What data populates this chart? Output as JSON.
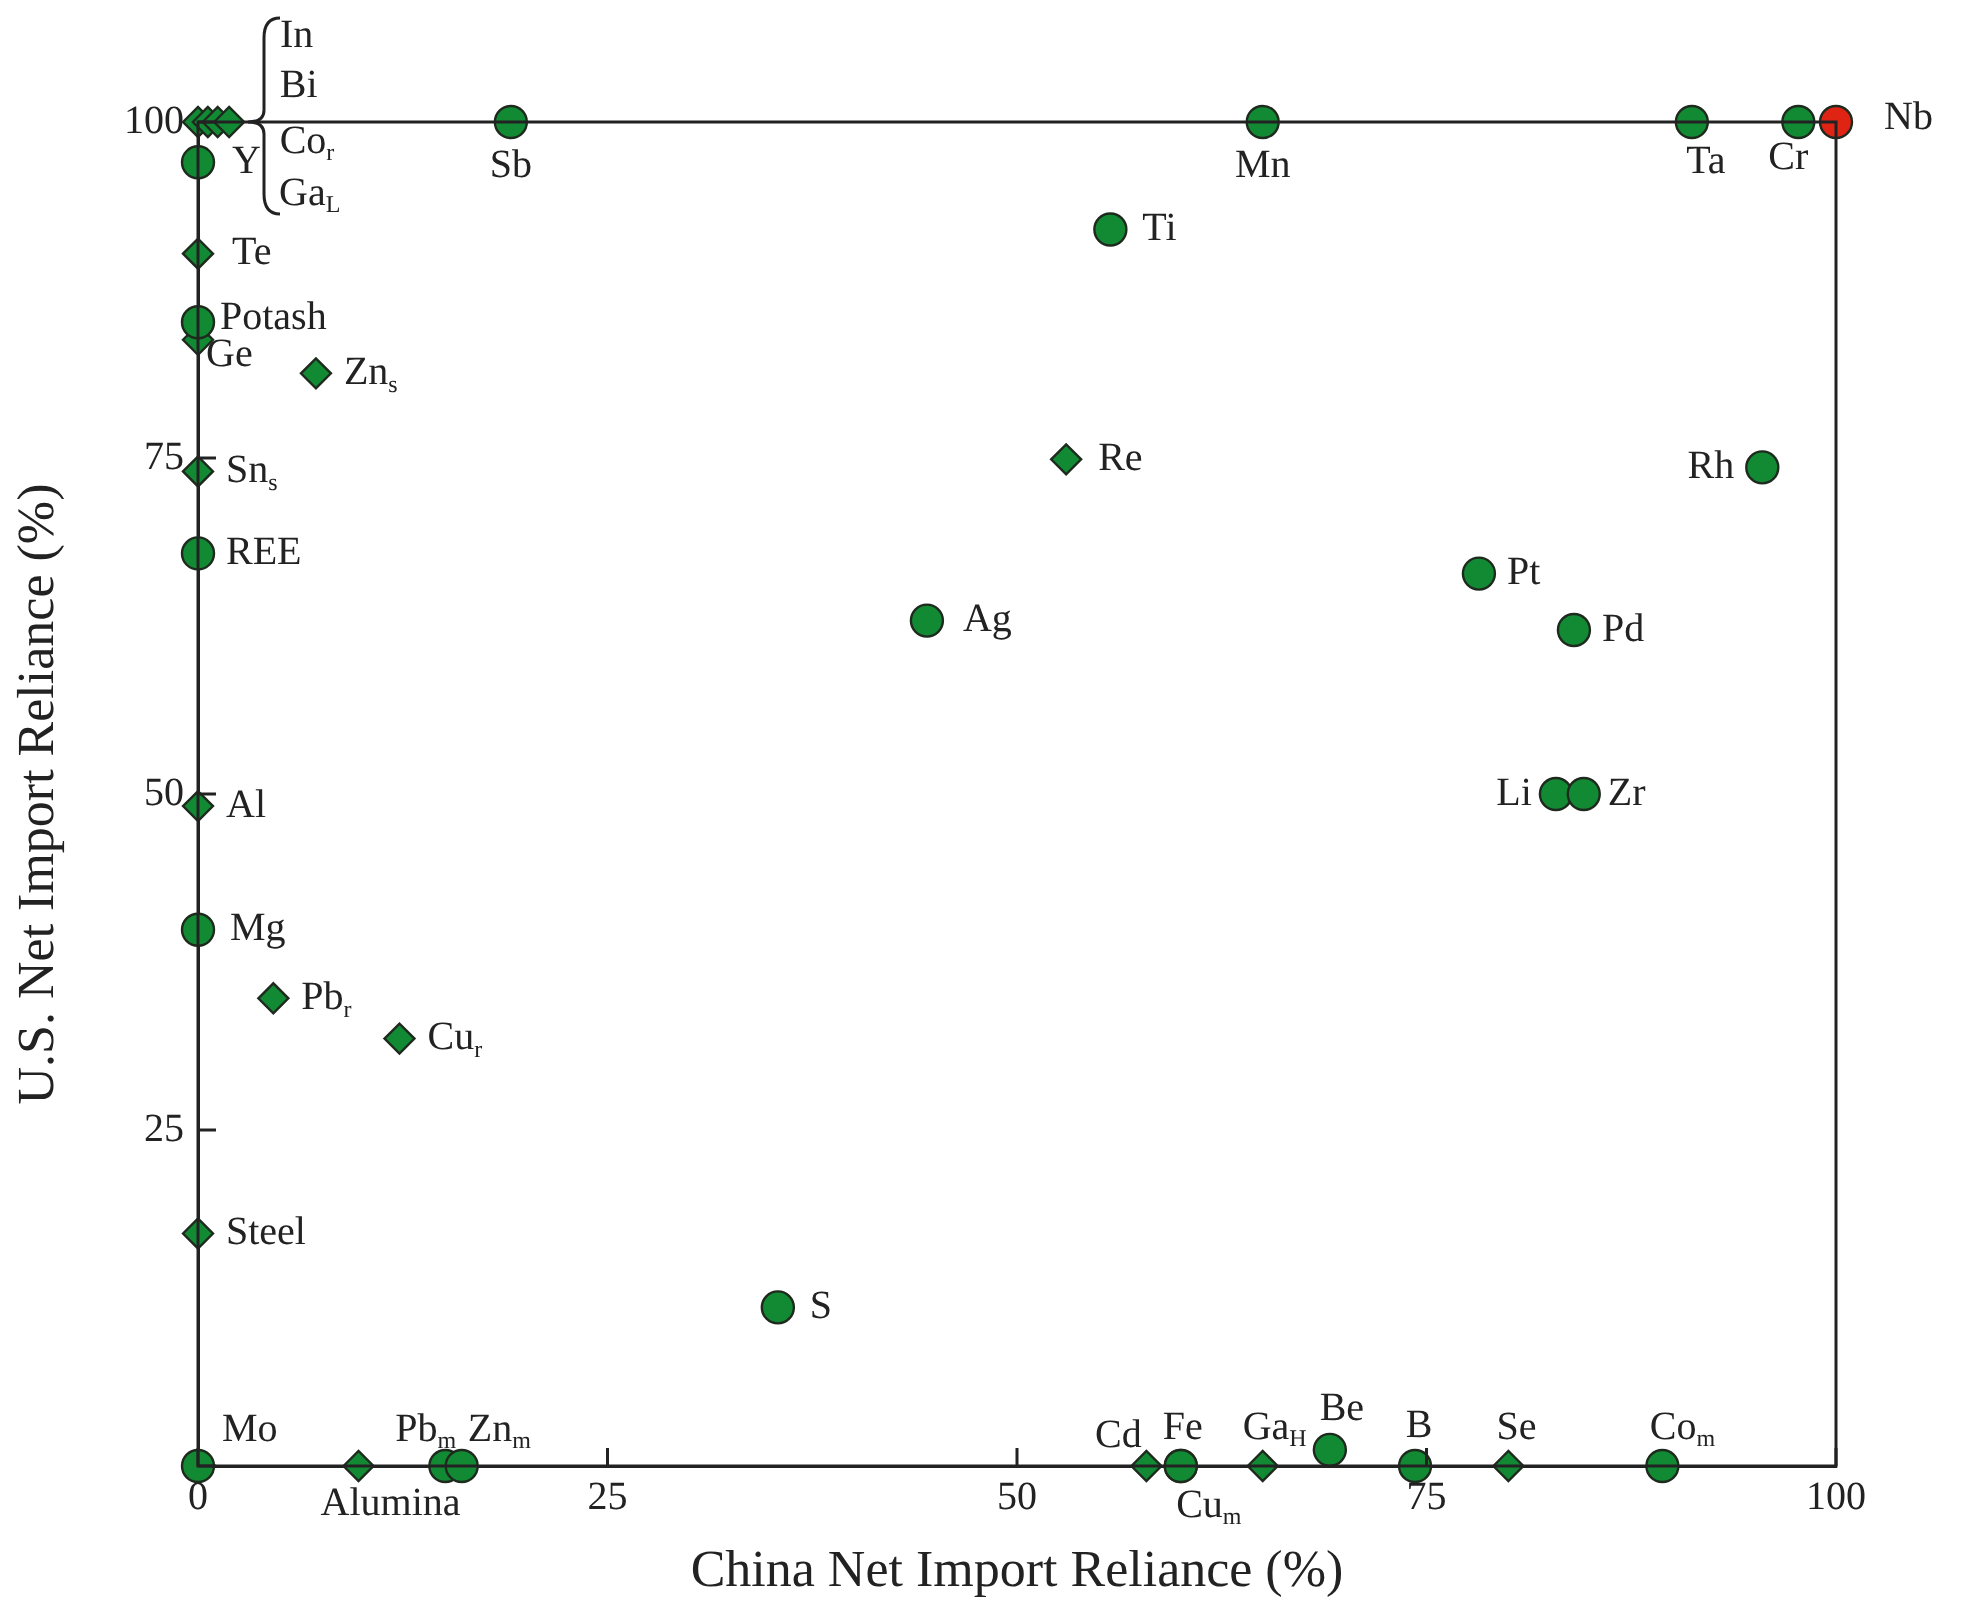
{
  "chart_data": {
    "type": "scatter",
    "xlabel": "China Net Import Reliance (%)",
    "ylabel": "U.S. Net Import Reliance (%)",
    "xlim": [
      0,
      100
    ],
    "ylim": [
      0,
      100
    ],
    "xticks": [
      0,
      25,
      50,
      75,
      100
    ],
    "yticks": [
      {
        "value": 0,
        "label": null
      },
      25,
      50,
      75,
      100
    ],
    "grid": false,
    "legend": false,
    "series": [
      {
        "color": "#128a34",
        "marker": "circle",
        "x": [
          0,
          0,
          0,
          0,
          0,
          15.1,
          16.1,
          35.4,
          44.5,
          55.7,
          19.1,
          65.0,
          91.2,
          97.7,
          95.5,
          78.2,
          84.0,
          82.9,
          84.6,
          60.0,
          60.0,
          69.1,
          74.3,
          89.4
        ],
        "values": [
          97.0,
          85.1,
          67.9,
          39.9,
          0,
          0,
          0,
          11.8,
          62.9,
          92.0,
          100,
          100,
          100,
          100,
          74.3,
          66.4,
          62.2,
          50.0,
          50.0,
          0,
          0,
          1.2,
          0,
          0
        ]
      },
      {
        "color": "#128a34",
        "marker": "diamond",
        "x": [
          0,
          0.6,
          1.2,
          1.9,
          0,
          0,
          7.2,
          0,
          0,
          4.6,
          12.3,
          0,
          9.8,
          53.0,
          57.9,
          65.0,
          80.0
        ],
        "values": [
          100,
          100,
          100,
          100,
          90.2,
          83.8,
          81.3,
          74.0,
          49.1,
          34.8,
          31.8,
          17.3,
          0,
          74.9,
          0,
          0,
          0
        ]
      },
      {
        "color": "#e02414",
        "marker": "circle",
        "x": [
          100
        ],
        "values": [
          100
        ]
      }
    ],
    "annotations": [
      {
        "text": "In",
        "x": 0,
        "y": 100
      },
      {
        "text": "Bi",
        "x": 0.6,
        "y": 100
      },
      {
        "text": "Co$_{r}$",
        "x": 1.2,
        "y": 100
      },
      {
        "text": "Ga$_{L}$",
        "x": 1.9,
        "y": 100
      },
      {
        "text": "Y",
        "x": 0,
        "y": 97.0
      },
      {
        "text": "Te",
        "x": 0,
        "y": 90.2
      },
      {
        "text": "Potash",
        "x": 0,
        "y": 85.1
      },
      {
        "text": "Ge",
        "x": 0,
        "y": 83.8
      },
      {
        "text": "Zn$_{s}$",
        "x": 7.2,
        "y": 81.3
      },
      {
        "text": "Sn$_{s}$",
        "x": 0,
        "y": 74.0
      },
      {
        "text": "REE",
        "x": 0,
        "y": 67.9
      },
      {
        "text": "Al",
        "x": 0,
        "y": 49.1
      },
      {
        "text": "Mg",
        "x": 0,
        "y": 39.9
      },
      {
        "text": "Pb$_{r}$",
        "x": 4.6,
        "y": 34.8
      },
      {
        "text": "Cu$_{r}$",
        "x": 12.3,
        "y": 31.8
      },
      {
        "text": "Steel",
        "x": 0,
        "y": 17.3
      },
      {
        "text": "Mo",
        "x": 0,
        "y": 0
      },
      {
        "text": "Alumina",
        "x": 9.8,
        "y": 0
      },
      {
        "text": "Pb$_{m}$",
        "x": 15.1,
        "y": 0
      },
      {
        "text": "Zn$_{m}$",
        "x": 16.1,
        "y": 0
      },
      {
        "text": "S",
        "x": 35.4,
        "y": 11.8
      },
      {
        "text": "Ag",
        "x": 44.5,
        "y": 62.9
      },
      {
        "text": "Re",
        "x": 53.0,
        "y": 74.9
      },
      {
        "text": "Ti",
        "x": 55.7,
        "y": 92.0
      },
      {
        "text": "Sb",
        "x": 19.1,
        "y": 100
      },
      {
        "text": "Mn",
        "x": 65.0,
        "y": 100
      },
      {
        "text": "Ta",
        "x": 91.2,
        "y": 100
      },
      {
        "text": "Cr",
        "x": 97.7,
        "y": 100
      },
      {
        "text": "Nb",
        "x": 100,
        "y": 100
      },
      {
        "text": "Rh",
        "x": 95.5,
        "y": 74.3
      },
      {
        "text": "Pt",
        "x": 78.2,
        "y": 66.4
      },
      {
        "text": "Pd",
        "x": 84.0,
        "y": 62.2
      },
      {
        "text": "Li",
        "x": 82.9,
        "y": 50.0
      },
      {
        "text": "Zr",
        "x": 84.6,
        "y": 50.0
      },
      {
        "text": "Cd",
        "x": 57.9,
        "y": 0
      },
      {
        "text": "Fe",
        "x": 60.0,
        "y": 0
      },
      {
        "text": "Cu$_{m}$",
        "x": 60.0,
        "y": 0
      },
      {
        "text": "Ga$_{H}$",
        "x": 65.0,
        "y": 0
      },
      {
        "text": "Be",
        "x": 69.1,
        "y": 1.2
      },
      {
        "text": "B",
        "x": 74.3,
        "y": 0
      },
      {
        "text": "Se",
        "x": 80.0,
        "y": 0
      },
      {
        "text": "Co$_{m}$",
        "x": 89.4,
        "y": 0
      }
    ]
  }
}
